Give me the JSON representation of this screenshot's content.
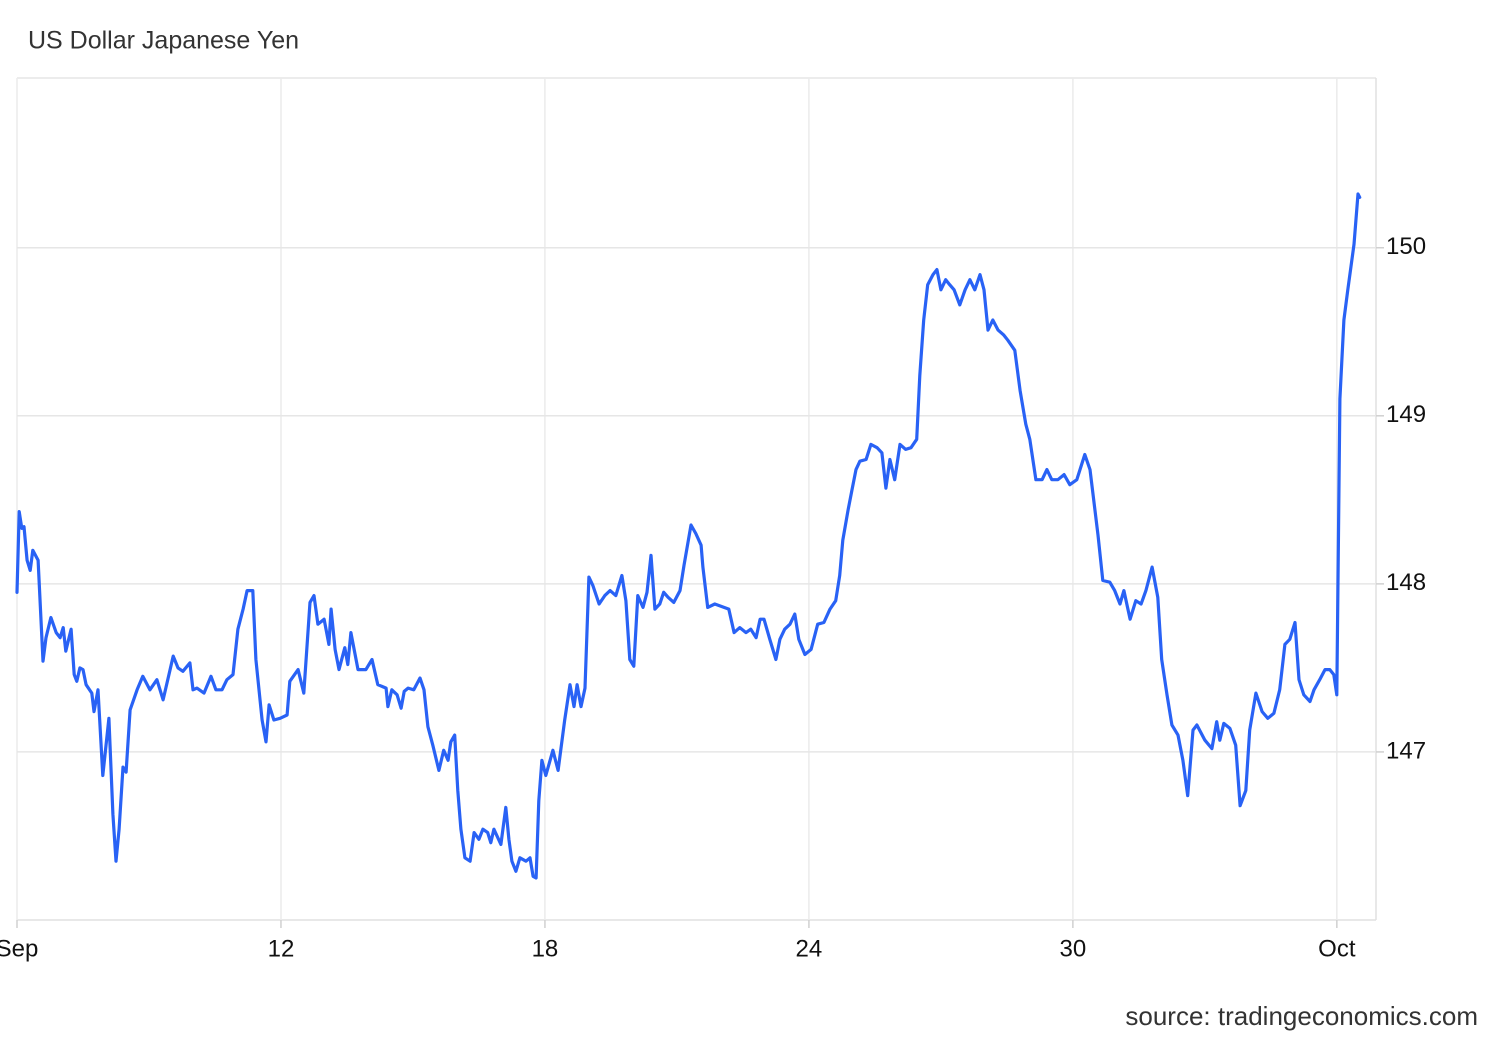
{
  "chart_data": {
    "type": "line",
    "title": "US Dollar Japanese Yen",
    "source": "source: tradingeconomics.com",
    "color": "#2962f5",
    "grid": true,
    "xlim": [
      0,
      30.89
    ],
    "ylim": [
      146,
      151.01
    ],
    "xticks": [
      {
        "value": 0,
        "label": "Sep"
      },
      {
        "value": 6,
        "label": "12"
      },
      {
        "value": 12,
        "label": "18"
      },
      {
        "value": 18,
        "label": "24"
      },
      {
        "value": 24,
        "label": "30"
      },
      {
        "value": 30,
        "label": "Oct"
      }
    ],
    "yticks": [
      147,
      148,
      149,
      150
    ],
    "x": [
      0,
      0.05,
      0.11,
      0.16,
      0.23,
      0.3,
      0.36,
      0.48,
      0.59,
      0.66,
      0.77,
      0.89,
      0.98,
      1.05,
      1.11,
      1.23,
      1.3,
      1.36,
      1.43,
      1.5,
      1.57,
      1.7,
      1.75,
      1.84,
      1.95,
      2.09,
      2.18,
      2.25,
      2.32,
      2.41,
      2.48,
      2.57,
      2.73,
      2.86,
      3.02,
      3.18,
      3.32,
      3.48,
      3.55,
      3.66,
      3.77,
      3.93,
      4.0,
      4.09,
      4.25,
      4.41,
      4.52,
      4.66,
      4.77,
      4.91,
      5.02,
      5.14,
      5.23,
      5.36,
      5.43,
      5.57,
      5.66,
      5.73,
      5.84,
      5.98,
      6.14,
      6.2,
      6.39,
      6.52,
      6.66,
      6.75,
      6.84,
      6.98,
      7.09,
      7.14,
      7.23,
      7.32,
      7.45,
      7.52,
      7.59,
      7.75,
      7.93,
      8.07,
      8.2,
      8.39,
      8.43,
      8.52,
      8.64,
      8.73,
      8.8,
      8.89,
      9.02,
      9.16,
      9.25,
      9.34,
      9.45,
      9.59,
      9.7,
      9.8,
      9.86,
      9.95,
      10.02,
      10.09,
      10.18,
      10.3,
      10.39,
      10.5,
      10.59,
      10.7,
      10.77,
      10.84,
      11.0,
      11.11,
      11.18,
      11.25,
      11.34,
      11.43,
      11.57,
      11.66,
      11.73,
      11.8,
      11.86,
      11.93,
      12.02,
      12.18,
      12.3,
      12.45,
      12.57,
      12.66,
      12.73,
      12.82,
      12.91,
      13.0,
      13.09,
      13.23,
      13.36,
      13.48,
      13.61,
      13.75,
      13.84,
      13.93,
      14.02,
      14.11,
      14.23,
      14.32,
      14.41,
      14.5,
      14.61,
      14.7,
      14.8,
      14.93,
      15.07,
      15.16,
      15.32,
      15.43,
      15.55,
      15.59,
      15.7,
      15.86,
      16.07,
      16.18,
      16.3,
      16.43,
      16.57,
      16.68,
      16.8,
      16.89,
      16.98,
      17.11,
      17.25,
      17.34,
      17.45,
      17.57,
      17.68,
      17.77,
      17.91,
      18.05,
      18.2,
      18.34,
      18.48,
      18.61,
      18.7,
      18.77,
      18.89,
      18.98,
      19.07,
      19.16,
      19.3,
      19.41,
      19.55,
      19.66,
      19.75,
      19.84,
      19.95,
      20.07,
      20.2,
      20.32,
      20.45,
      20.52,
      20.61,
      20.7,
      20.82,
      20.91,
      21.0,
      21.11,
      21.2,
      21.3,
      21.43,
      21.55,
      21.66,
      21.77,
      21.89,
      21.98,
      22.07,
      22.18,
      22.3,
      22.43,
      22.52,
      22.68,
      22.8,
      22.93,
      23.02,
      23.16,
      23.3,
      23.41,
      23.52,
      23.66,
      23.8,
      23.93,
      24.09,
      24.27,
      24.39,
      24.57,
      24.68,
      24.84,
      24.95,
      25.07,
      25.16,
      25.3,
      25.43,
      25.55,
      25.66,
      25.8,
      25.93,
      26.02,
      26.14,
      26.25,
      26.39,
      26.5,
      26.61,
      26.73,
      26.82,
      27.0,
      27.16,
      27.27,
      27.34,
      27.43,
      27.57,
      27.7,
      27.8,
      27.93,
      28.02,
      28.16,
      28.3,
      28.43,
      28.57,
      28.7,
      28.82,
      28.93,
      29.05,
      29.14,
      29.25,
      29.39,
      29.48,
      29.61,
      29.73,
      29.84,
      29.93,
      30.0,
      30.07,
      30.16,
      30.25,
      30.39,
      30.48,
      30.52
    ],
    "values": [
      147.95,
      148.43,
      148.33,
      148.34,
      148.14,
      148.08,
      148.2,
      148.14,
      147.54,
      147.68,
      147.8,
      147.71,
      147.68,
      147.74,
      147.6,
      147.73,
      147.46,
      147.42,
      147.5,
      147.49,
      147.4,
      147.35,
      147.24,
      147.37,
      146.86,
      147.2,
      146.63,
      146.35,
      146.54,
      146.91,
      146.88,
      147.25,
      147.37,
      147.45,
      147.37,
      147.43,
      147.31,
      147.49,
      147.57,
      147.5,
      147.48,
      147.53,
      147.37,
      147.38,
      147.35,
      147.45,
      147.37,
      147.37,
      147.43,
      147.46,
      147.73,
      147.85,
      147.96,
      147.96,
      147.55,
      147.19,
      147.06,
      147.28,
      147.19,
      147.2,
      147.22,
      147.42,
      147.49,
      147.35,
      147.89,
      147.93,
      147.76,
      147.79,
      147.64,
      147.85,
      147.61,
      147.49,
      147.62,
      147.52,
      147.71,
      147.49,
      147.49,
      147.55,
      147.4,
      147.38,
      147.27,
      147.37,
      147.34,
      147.26,
      147.36,
      147.38,
      147.37,
      147.44,
      147.37,
      147.15,
      147.04,
      146.89,
      147.01,
      146.95,
      147.06,
      147.1,
      146.77,
      146.54,
      146.37,
      146.35,
      146.52,
      146.48,
      146.54,
      146.52,
      146.46,
      146.54,
      146.45,
      146.67,
      146.48,
      146.35,
      146.29,
      146.37,
      146.35,
      146.37,
      146.26,
      146.25,
      146.71,
      146.95,
      146.86,
      147.01,
      146.89,
      147.19,
      147.4,
      147.27,
      147.4,
      147.27,
      147.38,
      148.04,
      147.99,
      147.88,
      147.93,
      147.96,
      147.93,
      148.05,
      147.9,
      147.55,
      147.51,
      147.93,
      147.86,
      147.95,
      148.17,
      147.85,
      147.88,
      147.95,
      147.92,
      147.89,
      147.96,
      148.11,
      148.35,
      148.3,
      148.23,
      148.1,
      147.86,
      147.88,
      147.86,
      147.85,
      147.71,
      147.74,
      147.71,
      147.73,
      147.68,
      147.79,
      147.79,
      147.67,
      147.55,
      147.67,
      147.73,
      147.76,
      147.82,
      147.67,
      147.58,
      147.61,
      147.76,
      147.77,
      147.85,
      147.9,
      148.05,
      148.26,
      148.44,
      148.56,
      148.68,
      148.73,
      148.74,
      148.83,
      148.81,
      148.78,
      148.57,
      148.74,
      148.62,
      148.83,
      148.8,
      148.81,
      148.86,
      149.24,
      149.57,
      149.78,
      149.84,
      149.87,
      149.75,
      149.81,
      149.78,
      149.75,
      149.66,
      149.75,
      149.81,
      149.75,
      149.84,
      149.75,
      149.51,
      149.57,
      149.51,
      149.48,
      149.45,
      149.39,
      149.15,
      148.95,
      148.86,
      148.62,
      148.62,
      148.68,
      148.62,
      148.62,
      148.65,
      148.59,
      148.62,
      148.77,
      148.68,
      148.29,
      148.02,
      148.01,
      147.96,
      147.88,
      147.96,
      147.79,
      147.9,
      147.88,
      147.96,
      148.1,
      147.92,
      147.55,
      147.34,
      147.16,
      147.1,
      146.95,
      146.74,
      147.13,
      147.16,
      147.07,
      147.02,
      147.18,
      147.07,
      147.17,
      147.14,
      147.04,
      146.68,
      146.77,
      147.13,
      147.35,
      147.24,
      147.2,
      147.23,
      147.37,
      147.64,
      147.67,
      147.77,
      147.43,
      147.34,
      147.3,
      147.37,
      147.43,
      147.49,
      147.49,
      147.46,
      147.34,
      149.1,
      149.57,
      149.75,
      150.02,
      150.32,
      150.3
    ]
  }
}
